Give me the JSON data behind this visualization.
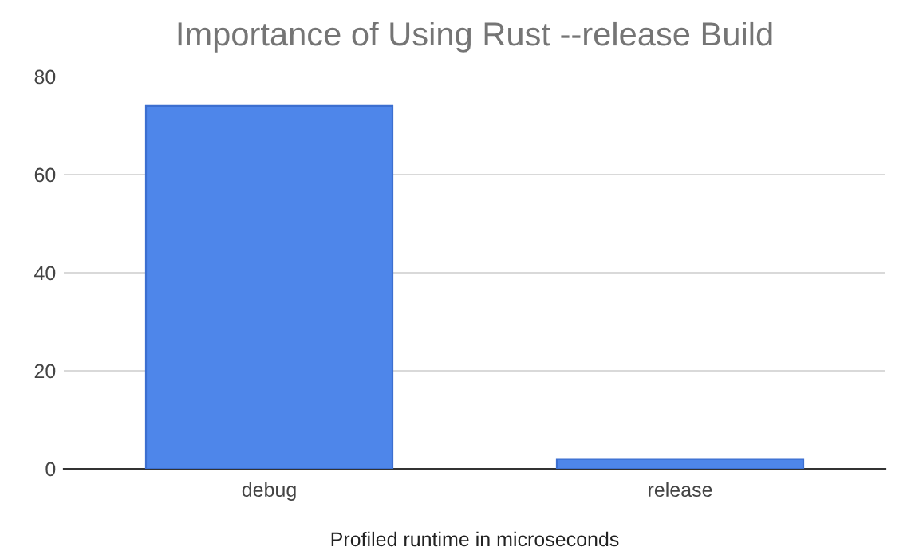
{
  "chart_data": {
    "type": "bar",
    "title": "Importance of Using Rust --release Build",
    "xlabel": "Profiled runtime in microseconds",
    "categories": [
      "debug",
      "release"
    ],
    "values": [
      74,
      2
    ],
    "color": "#4e86ea",
    "ylim": [
      0,
      80
    ],
    "yticks": [
      0,
      20,
      40,
      60,
      80
    ],
    "grid": "y",
    "legend": false
  }
}
